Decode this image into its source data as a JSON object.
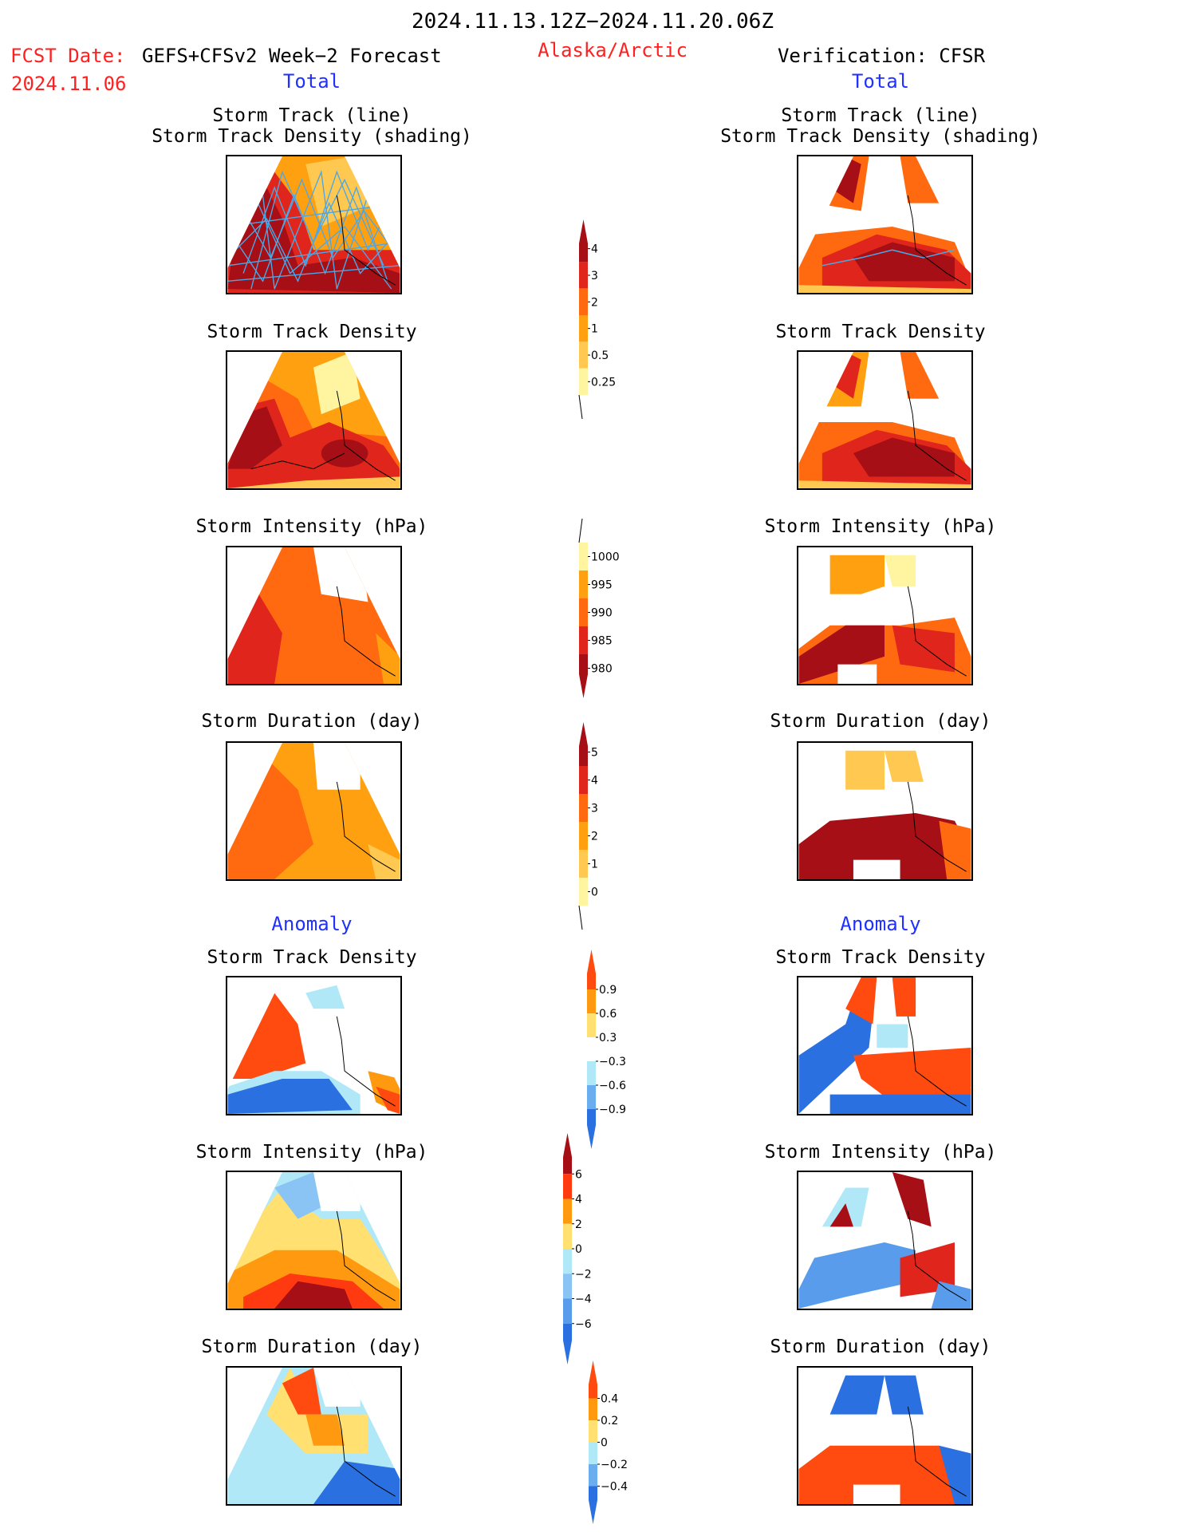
{
  "header": {
    "period": "2024.11.13.12Z−2024.11.20.06Z",
    "fcst_label": "FCST Date:",
    "fcst_model": "GEFS+CFSv2 Week−2 Forecast",
    "fcst_date": "2024.11.06",
    "region": "Alaska/Arctic",
    "verification": "Verification: CFSR"
  },
  "sections": {
    "total_left": "Total",
    "total_right": "Total",
    "anomaly_left": "Anomaly",
    "anomaly_right": "Anomaly"
  },
  "panel_titles": {
    "track_line": "Storm Track (line)",
    "track_shading": "Storm Track Density (shading)",
    "density": "Storm Track Density",
    "intensity": "Storm Intensity (hPa)",
    "duration": "Storm Duration (day)"
  },
  "colorbars": {
    "density_total": {
      "labels": [
        "4",
        "3",
        "2",
        "1",
        "0.5",
        "0.25"
      ],
      "colors": [
        "#a50f15",
        "#e0261c",
        "#ff6a10",
        "#ffa010",
        "#ffc850",
        "#fff4a0"
      ]
    },
    "intensity_total": {
      "labels": [
        "1000",
        "995",
        "990",
        "985",
        "980"
      ],
      "colors": [
        "#fff4a0",
        "#ffa010",
        "#ff6a10",
        "#e0261c",
        "#a50f15"
      ]
    },
    "duration_total": {
      "labels": [
        "5",
        "4",
        "3",
        "2",
        "1",
        "0"
      ],
      "colors": [
        "#a50f15",
        "#e0261c",
        "#ff6a10",
        "#ffa010",
        "#ffc850",
        "#fff4a0"
      ]
    },
    "density_anom": {
      "labels": [
        "0.9",
        "0.6",
        "0.3",
        "−0.3",
        "−0.6",
        "−0.9"
      ],
      "colors": [
        "#ff4a10",
        "#ff9a10",
        "#ffe070",
        "#ffffff",
        "#b0e8f8",
        "#6aaef0",
        "#2a70e0"
      ]
    },
    "intensity_anom": {
      "labels": [
        "6",
        "4",
        "2",
        "0",
        "−2",
        "−4",
        "−6"
      ],
      "colors": [
        "#a50f15",
        "#ff3a10",
        "#ff9a10",
        "#ffe070",
        "#b0e8f8",
        "#8ac4f4",
        "#5a9cec",
        "#2a70e0"
      ]
    },
    "duration_anom": {
      "labels": [
        "0.4",
        "0.2",
        "0",
        "−0.2",
        "−0.4"
      ],
      "colors": [
        "#ff4a10",
        "#ff9a10",
        "#ffe070",
        "#b0e8f8",
        "#6aaef0",
        "#2a70e0"
      ]
    }
  }
}
